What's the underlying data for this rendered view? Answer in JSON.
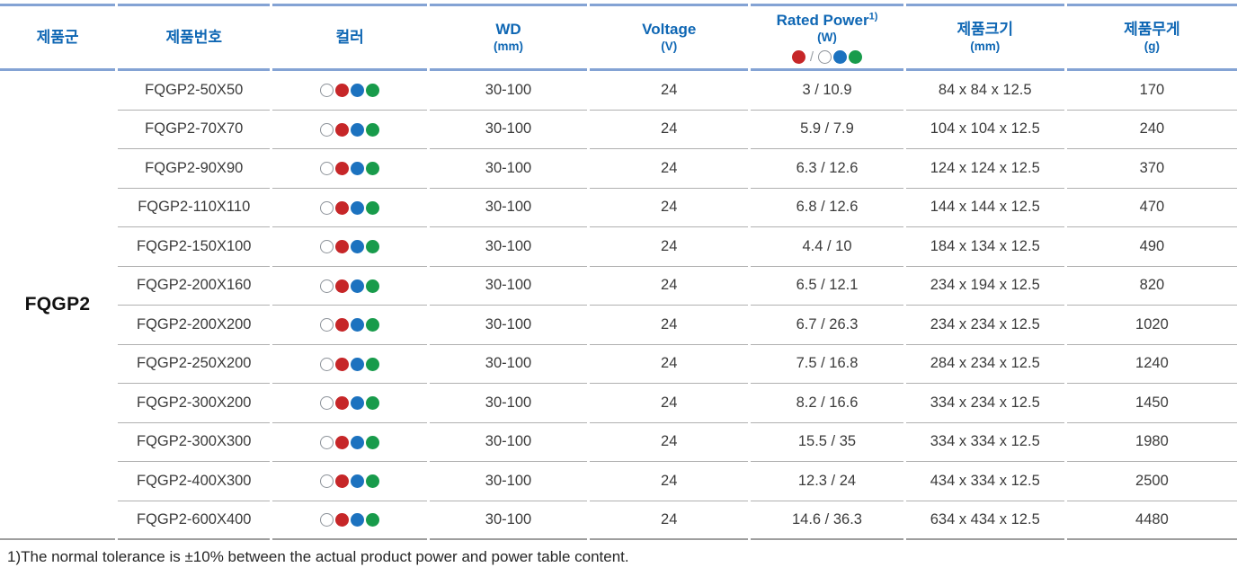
{
  "table": {
    "family_group": "FQGP2",
    "columns": [
      {
        "label": "제품군"
      },
      {
        "label": "제품번호"
      },
      {
        "label": "컬러"
      },
      {
        "label": "WD",
        "sub": "(mm)"
      },
      {
        "label": "Voltage",
        "sub": "(V)"
      },
      {
        "label": "Rated Power",
        "sup": "1)",
        "sub": "(W)"
      },
      {
        "label": "제품크기",
        "sub": "(mm)"
      },
      {
        "label": "제품무게",
        "sub": "(g)"
      }
    ],
    "power_legend": {
      "left_dots": [
        "red"
      ],
      "separator": "/",
      "right_dots": [
        "white",
        "blue",
        "green"
      ]
    },
    "row_dots": [
      "white",
      "red",
      "blue",
      "green"
    ],
    "rows": [
      {
        "part_no": "FQGP2-50X50",
        "wd": "30-100",
        "voltage": "24",
        "rated_power": "3 / 10.9",
        "size": "84 x 84 x 12.5",
        "weight": "170"
      },
      {
        "part_no": "FQGP2-70X70",
        "wd": "30-100",
        "voltage": "24",
        "rated_power": "5.9 / 7.9",
        "size": "104 x 104 x 12.5",
        "weight": "240"
      },
      {
        "part_no": "FQGP2-90X90",
        "wd": "30-100",
        "voltage": "24",
        "rated_power": "6.3 / 12.6",
        "size": "124 x 124 x 12.5",
        "weight": "370"
      },
      {
        "part_no": "FQGP2-110X110",
        "wd": "30-100",
        "voltage": "24",
        "rated_power": "6.8 / 12.6",
        "size": "144 x 144 x 12.5",
        "weight": "470"
      },
      {
        "part_no": "FQGP2-150X100",
        "wd": "30-100",
        "voltage": "24",
        "rated_power": "4.4 / 10",
        "size": "184 x 134 x 12.5",
        "weight": "490"
      },
      {
        "part_no": "FQGP2-200X160",
        "wd": "30-100",
        "voltage": "24",
        "rated_power": "6.5 / 12.1",
        "size": "234 x 194 x 12.5",
        "weight": "820"
      },
      {
        "part_no": "FQGP2-200X200",
        "wd": "30-100",
        "voltage": "24",
        "rated_power": "6.7 / 26.3",
        "size": "234 x 234 x 12.5",
        "weight": "1020"
      },
      {
        "part_no": "FQGP2-250X200",
        "wd": "30-100",
        "voltage": "24",
        "rated_power": "7.5 / 16.8",
        "size": "284 x 234 x 12.5",
        "weight": "1240"
      },
      {
        "part_no": "FQGP2-300X200",
        "wd": "30-100",
        "voltage": "24",
        "rated_power": "8.2 / 16.6",
        "size": "334 x 234 x 12.5",
        "weight": "1450"
      },
      {
        "part_no": "FQGP2-300X300",
        "wd": "30-100",
        "voltage": "24",
        "rated_power": "15.5 / 35",
        "size": "334 x 334 x 12.5",
        "weight": "1980"
      },
      {
        "part_no": "FQGP2-400X300",
        "wd": "30-100",
        "voltage": "24",
        "rated_power": "12.3 / 24",
        "size": "434 x 334 x 12.5",
        "weight": "2500"
      },
      {
        "part_no": "FQGP2-600X400",
        "wd": "30-100",
        "voltage": "24",
        "rated_power": "14.6 / 36.3",
        "size": "634 x 434 x 12.5",
        "weight": "4480"
      }
    ]
  },
  "footnote": "1)The normal tolerance is ±10% between the actual product power and power table content.",
  "colors": {
    "header_text": "#0f67b4",
    "header_rule": "#84a3d4",
    "row_rule": "#b0b0b0",
    "dots": {
      "red": "#c62628",
      "blue": "#1c72bf",
      "green": "#189b4b",
      "white": "#ffffff"
    },
    "white_dot_border": "#8d939a"
  }
}
